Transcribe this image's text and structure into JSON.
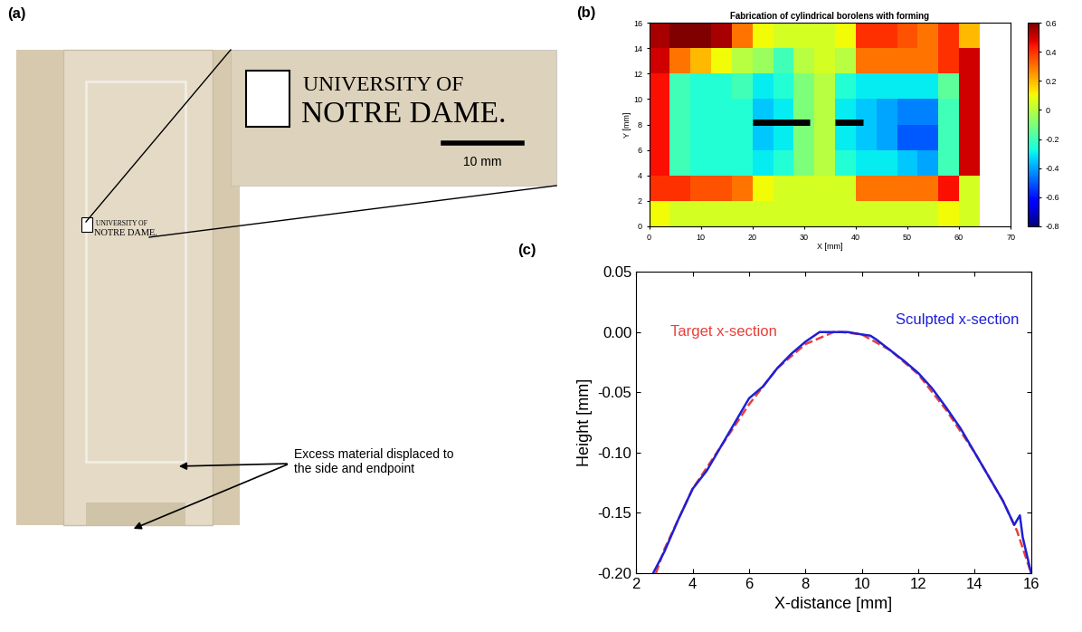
{
  "photo": {
    "label": "(a)",
    "logo": [
      "UNIVERSITY OF",
      "NOTRE DAME."
    ],
    "scale_bar": "10 mm",
    "annotation": "Excess material displaced to the side and endpoint"
  },
  "chart_data": [
    {
      "type": "heatmap",
      "label": "(b)",
      "title": "Fabrication of cylindrical borolens with forming",
      "x_label": "X [mm]",
      "y_label": "Y [mm]",
      "x_edges": [
        0,
        4,
        8,
        12,
        16,
        20,
        24,
        28,
        32,
        36,
        40,
        44,
        48,
        52,
        56,
        60,
        64
      ],
      "y_edges": [
        0,
        2,
        4,
        6,
        8,
        10,
        12,
        14,
        16
      ],
      "cells": [
        [
          0.1,
          0.05,
          0.05,
          0.05,
          0.05,
          0.05,
          0.05,
          0.05,
          0.05,
          0.05,
          0.05,
          0.05,
          0.05,
          0.05,
          0.1,
          0.05
        ],
        [
          0.4,
          0.4,
          0.35,
          0.35,
          0.3,
          0.1,
          0.05,
          0.05,
          0.05,
          0.05,
          0.3,
          0.3,
          0.3,
          0.3,
          0.45,
          0.05
        ],
        [
          0.45,
          -0.2,
          -0.25,
          -0.25,
          -0.25,
          -0.3,
          -0.25,
          -0.1,
          0.0,
          -0.25,
          -0.3,
          -0.3,
          -0.35,
          -0.4,
          -0.2,
          0.5
        ],
        [
          0.45,
          -0.2,
          -0.25,
          -0.25,
          -0.25,
          -0.35,
          -0.3,
          -0.1,
          0.0,
          -0.3,
          -0.35,
          -0.4,
          -0.5,
          -0.5,
          -0.2,
          0.5
        ],
        [
          0.45,
          -0.2,
          -0.25,
          -0.25,
          -0.25,
          -0.35,
          -0.3,
          -0.1,
          0.0,
          -0.3,
          -0.35,
          -0.4,
          -0.45,
          -0.45,
          -0.2,
          0.5
        ],
        [
          0.45,
          -0.2,
          -0.25,
          -0.25,
          -0.2,
          -0.3,
          -0.25,
          -0.1,
          0.0,
          -0.25,
          -0.3,
          -0.3,
          -0.3,
          -0.3,
          -0.15,
          0.5
        ],
        [
          0.5,
          0.3,
          0.2,
          0.1,
          0.0,
          -0.05,
          -0.2,
          0.0,
          0.05,
          0.0,
          0.3,
          0.3,
          0.3,
          0.3,
          0.4,
          0.5
        ],
        [
          0.55,
          0.6,
          0.6,
          0.55,
          0.3,
          0.1,
          0.05,
          0.05,
          0.05,
          0.1,
          0.4,
          0.4,
          0.35,
          0.3,
          0.4,
          0.2
        ]
      ],
      "xlim": [
        0,
        70
      ],
      "ylim": [
        0,
        16
      ],
      "xticks": [
        0,
        10,
        20,
        30,
        40,
        50,
        60,
        70
      ],
      "yticks": [
        0,
        2,
        4,
        6,
        8,
        10,
        12,
        14,
        16
      ],
      "colorbar": {
        "range": [
          -0.8,
          0.6
        ],
        "ticks": [
          -0.8,
          -0.6,
          -0.4,
          -0.2,
          0,
          0.2,
          0.4,
          0.6
        ]
      },
      "lines": [
        {
          "x": [
            20,
            31
          ],
          "y": [
            8.2,
            8.2
          ],
          "color": "#000000"
        },
        {
          "x": [
            36,
            41.5
          ],
          "y": [
            8.2,
            8.2
          ],
          "color": "#000000"
        }
      ]
    },
    {
      "type": "line",
      "label": "(c)",
      "x_label": "X-distance [mm]",
      "y_label": "Height [mm]",
      "xlim": [
        2,
        16
      ],
      "ylim": [
        -0.2,
        0.05
      ],
      "xticks": [
        2,
        4,
        6,
        8,
        10,
        12,
        14,
        16
      ],
      "yticks": [
        {
          "value": -0.2,
          "label": "-0.20"
        },
        {
          "value": -0.15,
          "label": "-0.15"
        },
        {
          "value": -0.1,
          "label": "-0.10"
        },
        {
          "value": -0.05,
          "label": "-0.05"
        },
        {
          "value": 0,
          "label": "0.00"
        },
        {
          "value": 0.05,
          "label": "0.05"
        }
      ],
      "series": [
        {
          "name": "Target x-section",
          "color": "#e8403a",
          "line_style": "dashed",
          "x": [
            2.7,
            3,
            4,
            5,
            6,
            7,
            8,
            9,
            9.3,
            10,
            11,
            12,
            13,
            14,
            15,
            15.5,
            16
          ],
          "values": [
            -0.2,
            -0.18,
            -0.13,
            -0.095,
            -0.06,
            -0.03,
            -0.01,
            0.0,
            0.0,
            -0.002,
            -0.015,
            -0.035,
            -0.065,
            -0.1,
            -0.14,
            -0.165,
            -0.2
          ]
        },
        {
          "name": "Sculpted x-section",
          "color": "#1f1fd6",
          "line_style": "solid",
          "x": [
            2.6,
            3,
            3.5,
            4,
            4.5,
            5,
            5.5,
            6,
            6.5,
            7,
            7.5,
            8,
            8.5,
            9,
            9.5,
            10,
            10.3,
            10.5,
            11,
            11.5,
            12,
            12.5,
            13,
            13.5,
            14,
            14.5,
            15,
            15.4,
            15.6,
            15.7,
            16
          ],
          "values": [
            -0.2,
            -0.182,
            -0.155,
            -0.13,
            -0.115,
            -0.095,
            -0.075,
            -0.055,
            -0.045,
            -0.03,
            -0.018,
            -0.008,
            0.0,
            0.0,
            0.0,
            -0.002,
            -0.003,
            -0.006,
            -0.015,
            -0.024,
            -0.034,
            -0.047,
            -0.063,
            -0.08,
            -0.1,
            -0.12,
            -0.14,
            -0.16,
            -0.152,
            -0.17,
            -0.2
          ]
        }
      ]
    }
  ]
}
